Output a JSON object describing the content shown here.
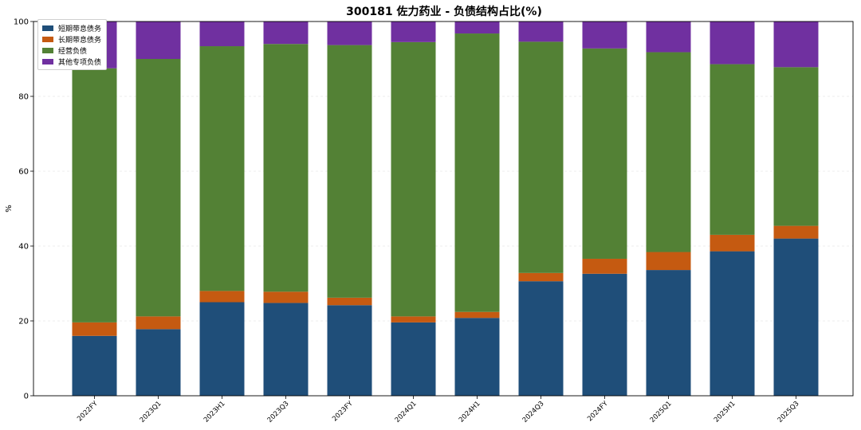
{
  "chart_data": {
    "type": "bar",
    "stacked": true,
    "title": "300181 佐力药业 - 负债结构占比(%)",
    "xlabel": "",
    "ylabel": "%",
    "ylim": [
      0,
      100
    ],
    "yticks": [
      0,
      20,
      40,
      60,
      80,
      100
    ],
    "grid": true,
    "legend_position": "top-left",
    "categories": [
      "2022FY",
      "2023Q1",
      "2023H1",
      "2023Q3",
      "2023FY",
      "2024Q1",
      "2024H1",
      "2024Q3",
      "2024FY",
      "2025Q1",
      "2025H1",
      "2025Q3"
    ],
    "series": [
      {
        "name": "短期带息债务",
        "color": "#1f4e79",
        "values": [
          16.0,
          17.8,
          25.0,
          24.8,
          24.2,
          19.6,
          20.8,
          30.6,
          32.6,
          33.6,
          38.6,
          42.0
        ]
      },
      {
        "name": "长期带息债务",
        "color": "#c55a11",
        "values": [
          3.6,
          3.4,
          3.0,
          3.0,
          2.0,
          1.6,
          1.6,
          2.2,
          4.0,
          4.8,
          4.4,
          3.4
        ]
      },
      {
        "name": "经营负债",
        "color": "#538135",
        "values": [
          67.9,
          68.8,
          65.4,
          66.2,
          67.5,
          73.3,
          74.4,
          61.8,
          56.2,
          53.4,
          45.6,
          42.4
        ]
      },
      {
        "name": "其他专项负债",
        "color": "#7030a0",
        "values": [
          12.5,
          10.0,
          6.6,
          6.0,
          6.3,
          5.5,
          3.2,
          5.4,
          7.2,
          8.2,
          11.4,
          12.2
        ]
      }
    ]
  }
}
